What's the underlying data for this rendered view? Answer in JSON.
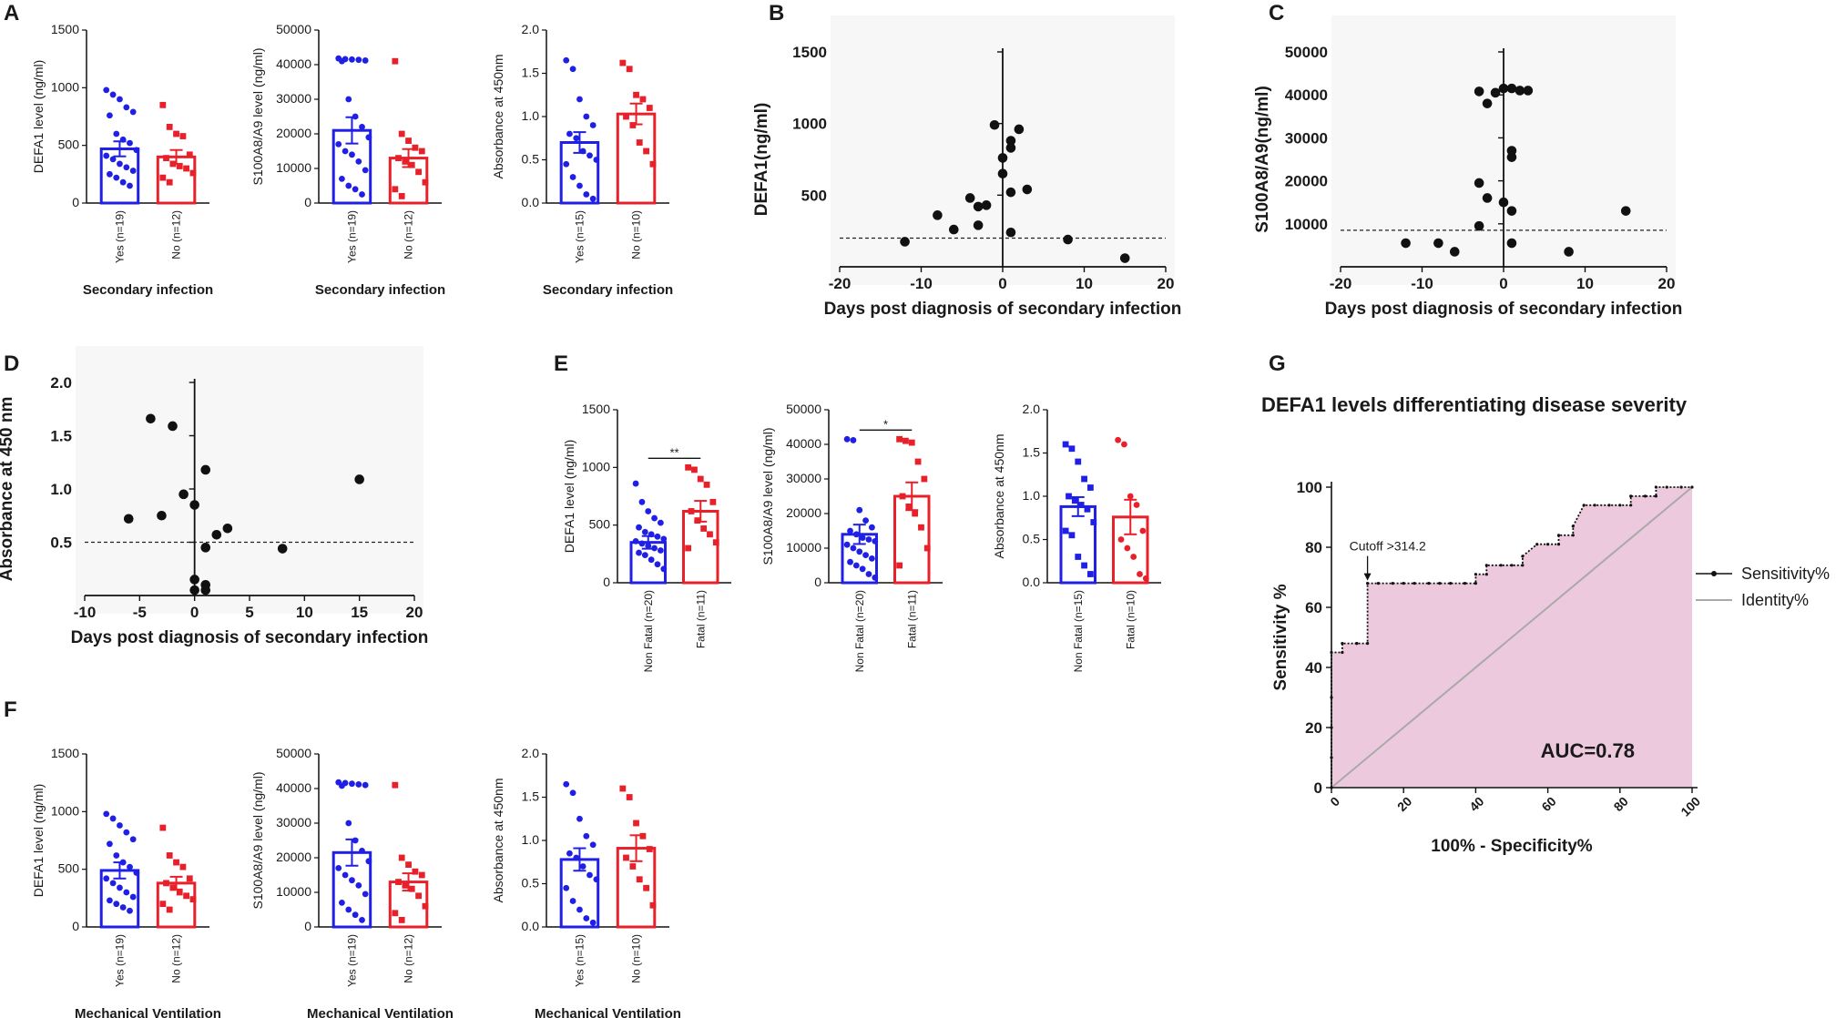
{
  "figure": {
    "panels": [
      "A",
      "B",
      "C",
      "D",
      "E",
      "F",
      "G"
    ]
  },
  "colors": {
    "blue": "#1f1fe6",
    "red": "#e8202a",
    "black": "#111111",
    "roc_fill": "#ecc9dc",
    "identity": "#a9a9a9"
  },
  "chart_data": [
    {
      "id": "A1",
      "panel": "A",
      "type": "bar",
      "ylabel": "DEFA1 level (ng/ml)",
      "xlabel": "Secondary infection",
      "ylim": [
        0,
        1500
      ],
      "yticks": [
        "0",
        "500",
        "1000",
        "1500"
      ],
      "categories": [
        "Yes (n=19)",
        "No (n=12)"
      ],
      "values": [
        470,
        400
      ],
      "errors": [
        65,
        60
      ],
      "points": [
        [
          980,
          940,
          900,
          830,
          790,
          760,
          600,
          550,
          520,
          460,
          410,
          380,
          340,
          310,
          280,
          250,
          220,
          180,
          150
        ],
        [
          850,
          660,
          600,
          580,
          420,
          390,
          340,
          320,
          300,
          260,
          220,
          180
        ]
      ],
      "colors": [
        "#1f1fe6",
        "#e8202a"
      ]
    },
    {
      "id": "A2",
      "panel": "A",
      "type": "bar",
      "ylabel": "S100A8/A9 level (ng/ml)",
      "xlabel": "Secondary infection",
      "ylim": [
        0,
        50000
      ],
      "yticks": [
        "0",
        "10000",
        "20000",
        "30000",
        "40000",
        "50000"
      ],
      "categories": [
        "Yes (n=19)",
        "No (n=12)"
      ],
      "values": [
        21000,
        13000
      ],
      "errors": [
        3800,
        2600
      ],
      "points": [
        [
          41800,
          41600,
          41500,
          41400,
          41200,
          41000,
          30000,
          25000,
          22000,
          19000,
          17000,
          15000,
          14000,
          12000,
          9500,
          7000,
          5000,
          4000,
          2500
        ],
        [
          41000,
          20000,
          18000,
          16000,
          15000,
          13000,
          12000,
          11000,
          9000,
          6000,
          4000,
          2000
        ]
      ],
      "colors": [
        "#1f1fe6",
        "#e8202a"
      ]
    },
    {
      "id": "A3",
      "panel": "A",
      "type": "bar",
      "ylabel": "Absorbance at 450nm",
      "xlabel": "Secondary infection",
      "ylim": [
        0,
        2.0
      ],
      "yticks": [
        "0.0",
        "0.5",
        "1.0",
        "1.5",
        "2.0"
      ],
      "categories": [
        "Yes (n=15)",
        "No (n=10)"
      ],
      "values": [
        0.7,
        1.03
      ],
      "errors": [
        0.12,
        0.12
      ],
      "points": [
        [
          1.65,
          1.55,
          1.2,
          1.0,
          0.9,
          0.8,
          0.75,
          0.6,
          0.55,
          0.5,
          0.45,
          0.3,
          0.2,
          0.1,
          0.05
        ],
        [
          1.62,
          1.55,
          1.25,
          1.2,
          1.1,
          1.0,
          0.9,
          0.7,
          0.6,
          0.45
        ]
      ],
      "colors": [
        "#1f1fe6",
        "#e8202a"
      ]
    },
    {
      "id": "B",
      "panel": "B",
      "type": "scatter",
      "ylabel": "DEFA1(ng/ml)",
      "xlabel": "Days post diagnosis of secondary infection",
      "xlim": [
        -20,
        20
      ],
      "ylim": [
        0,
        1500
      ],
      "xticks": [
        "-20",
        "-10",
        "0",
        "10",
        "20"
      ],
      "yticks": [
        "500",
        "1000",
        "1500"
      ],
      "cutoff": 200,
      "points": [
        [
          -12,
          175
        ],
        [
          -8,
          360
        ],
        [
          -6,
          260
        ],
        [
          -4,
          480
        ],
        [
          -3,
          420
        ],
        [
          -3,
          290
        ],
        [
          -2,
          430
        ],
        [
          -1,
          990
        ],
        [
          0,
          760
        ],
        [
          0,
          650
        ],
        [
          1,
          880
        ],
        [
          1,
          830
        ],
        [
          1,
          520
        ],
        [
          1,
          240
        ],
        [
          2,
          960
        ],
        [
          3,
          540
        ],
        [
          8,
          190
        ],
        [
          15,
          60
        ]
      ]
    },
    {
      "id": "C",
      "panel": "C",
      "type": "scatter",
      "ylabel": "S100A8/A9(ng/ml)",
      "xlabel": "Days post diagnosis of secondary infection",
      "xlim": [
        -20,
        20
      ],
      "ylim": [
        0,
        50000
      ],
      "xticks": [
        "-20",
        "-10",
        "0",
        "10",
        "20"
      ],
      "yticks": [
        "10000",
        "20000",
        "30000",
        "40000",
        "50000"
      ],
      "cutoff": 8500,
      "points": [
        [
          -12,
          5500
        ],
        [
          -8,
          5500
        ],
        [
          -6,
          3500
        ],
        [
          -3,
          19500
        ],
        [
          -3,
          9500
        ],
        [
          -2,
          16000
        ],
        [
          -2,
          38000
        ],
        [
          -1,
          40500
        ],
        [
          0,
          41500
        ],
        [
          0,
          15000
        ],
        [
          1,
          41500
        ],
        [
          1,
          27000
        ],
        [
          1,
          25500
        ],
        [
          1,
          13000
        ],
        [
          1,
          5500
        ],
        [
          2,
          41000
        ],
        [
          3,
          41000
        ],
        [
          8,
          3500
        ],
        [
          15,
          13000
        ]
      ],
      "extra_points": [
        [
          -3,
          40800
        ]
      ]
    },
    {
      "id": "D",
      "panel": "D",
      "type": "scatter",
      "ylabel": "Absorbance at 450 nm",
      "xlabel": "Days post diagnosis of secondary infection",
      "xlim": [
        -10,
        20
      ],
      "ylim": [
        0,
        2.0
      ],
      "xticks": [
        "-10",
        "-5",
        "0",
        "5",
        "10",
        "15",
        "20"
      ],
      "yticks": [
        "0.5",
        "1.0",
        "1.5",
        "2.0"
      ],
      "cutoff": 0.5,
      "points": [
        [
          -6,
          0.72
        ],
        [
          -4,
          1.66
        ],
        [
          -3,
          0.75
        ],
        [
          -2,
          1.59
        ],
        [
          -1,
          0.95
        ],
        [
          0,
          0.85
        ],
        [
          0,
          0.15
        ],
        [
          0,
          0.05
        ],
        [
          1,
          1.18
        ],
        [
          1,
          0.45
        ],
        [
          1,
          0.1
        ],
        [
          1,
          0.05
        ],
        [
          2,
          0.57
        ],
        [
          3,
          0.63
        ],
        [
          8,
          0.44
        ],
        [
          15,
          1.09
        ]
      ]
    },
    {
      "id": "E1",
      "panel": "E",
      "type": "bar",
      "ylabel": "DEFA1 level (ng/ml)",
      "xlabel": "",
      "ylim": [
        0,
        1500
      ],
      "yticks": [
        "0",
        "500",
        "1000",
        "1500"
      ],
      "categories": [
        "Non Fatal (n=20)",
        "Fatal (n=11)"
      ],
      "values": [
        350,
        620
      ],
      "errors": [
        55,
        90
      ],
      "points": [
        [
          860,
          700,
          620,
          560,
          520,
          480,
          440,
          420,
          400,
          380,
          360,
          340,
          320,
          300,
          280,
          260,
          240,
          200,
          160,
          120
        ],
        [
          1000,
          980,
          900,
          850,
          700,
          620,
          540,
          470,
          420,
          350,
          300
        ]
      ],
      "colors": [
        "#1f1fe6",
        "#e8202a"
      ],
      "significance": "**",
      "markers": [
        "circle",
        "square"
      ]
    },
    {
      "id": "E2",
      "panel": "E",
      "type": "bar",
      "ylabel": "S100A8/A9 level (ng/ml)",
      "xlabel": "",
      "ylim": [
        0,
        50000
      ],
      "yticks": [
        "0",
        "10000",
        "20000",
        "30000",
        "40000",
        "50000"
      ],
      "categories": [
        "Non Fatal (n=20)",
        "Fatal (n=11)"
      ],
      "values": [
        14000,
        25000
      ],
      "errors": [
        2800,
        4000
      ],
      "points": [
        [
          41500,
          41200,
          21000,
          18000,
          16000,
          15000,
          14000,
          13000,
          12500,
          12000,
          11000,
          10000,
          9000,
          8000,
          7000,
          6000,
          5000,
          4000,
          2500,
          1500
        ],
        [
          41500,
          41000,
          40500,
          35000,
          30000,
          25000,
          22000,
          20000,
          16000,
          10000,
          5000
        ]
      ],
      "colors": [
        "#1f1fe6",
        "#e8202a"
      ],
      "significance": "*",
      "markers": [
        "circle",
        "square"
      ]
    },
    {
      "id": "E3",
      "panel": "E",
      "type": "bar",
      "ylabel": "Absorbance at 450nm",
      "xlabel": "",
      "ylim": [
        0,
        2.0
      ],
      "yticks": [
        "0.0",
        "0.5",
        "1.0",
        "1.5",
        "2.0"
      ],
      "categories": [
        "Non Fatal (n=15)",
        "Fatal (n=10)"
      ],
      "values": [
        0.88,
        0.76
      ],
      "errors": [
        0.11,
        0.2
      ],
      "points": [
        [
          1.6,
          1.55,
          1.4,
          1.2,
          1.1,
          1.0,
          0.95,
          0.9,
          0.85,
          0.7,
          0.6,
          0.55,
          0.3,
          0.2,
          0.1
        ],
        [
          1.65,
          1.6,
          1.0,
          0.9,
          0.6,
          0.5,
          0.4,
          0.3,
          0.1,
          0.05
        ]
      ],
      "colors": [
        "#1f1fe6",
        "#e8202a"
      ],
      "markers": [
        "square",
        "circle"
      ]
    },
    {
      "id": "F1",
      "panel": "F",
      "type": "bar",
      "ylabel": "DEFA1 level (ng/ml)",
      "xlabel": "Mechanical Ventilation",
      "ylim": [
        0,
        1500
      ],
      "yticks": [
        "0",
        "500",
        "1000",
        "1500"
      ],
      "categories": [
        "Yes (n=19)",
        "No (n=12)"
      ],
      "values": [
        490,
        380
      ],
      "errors": [
        70,
        55
      ],
      "points": [
        [
          980,
          940,
          880,
          820,
          760,
          720,
          620,
          560,
          520,
          470,
          420,
          380,
          340,
          300,
          260,
          230,
          200,
          170,
          140
        ],
        [
          860,
          620,
          560,
          520,
          420,
          380,
          340,
          300,
          270,
          240,
          200,
          150
        ]
      ],
      "colors": [
        "#1f1fe6",
        "#e8202a"
      ],
      "markers": [
        "circle",
        "square"
      ]
    },
    {
      "id": "F2",
      "panel": "F",
      "type": "bar",
      "ylabel": "S100A8/A9 level (ng/ml)",
      "xlabel": "Mechanical Ventilation",
      "ylim": [
        0,
        50000
      ],
      "yticks": [
        "0",
        "10000",
        "20000",
        "30000",
        "40000",
        "50000"
      ],
      "categories": [
        "Yes (n=19)",
        "No (n=12)"
      ],
      "values": [
        21500,
        13000
      ],
      "errors": [
        3800,
        2500
      ],
      "points": [
        [
          41800,
          41600,
          41400,
          41200,
          41000,
          40800,
          30000,
          25000,
          22000,
          19000,
          17000,
          15000,
          13500,
          12000,
          9500,
          7000,
          5000,
          3500,
          2000
        ],
        [
          41000,
          20000,
          18000,
          16000,
          15000,
          13000,
          12000,
          11000,
          9000,
          6000,
          4000,
          2000
        ]
      ],
      "colors": [
        "#1f1fe6",
        "#e8202a"
      ],
      "markers": [
        "circle",
        "square"
      ]
    },
    {
      "id": "F3",
      "panel": "F",
      "type": "bar",
      "ylabel": "Absorbance at 450nm",
      "xlabel": "Mechanical Ventilation",
      "ylim": [
        0,
        2.0
      ],
      "yticks": [
        "0.0",
        "0.5",
        "1.0",
        "1.5",
        "2.0"
      ],
      "categories": [
        "Yes (n=15)",
        "No (n=10)"
      ],
      "values": [
        0.78,
        0.91
      ],
      "errors": [
        0.13,
        0.15
      ],
      "points": [
        [
          1.65,
          1.55,
          1.25,
          1.05,
          0.95,
          0.85,
          0.8,
          0.7,
          0.6,
          0.55,
          0.45,
          0.3,
          0.2,
          0.1,
          0.05
        ],
        [
          1.6,
          1.5,
          1.2,
          1.05,
          0.9,
          0.8,
          0.7,
          0.55,
          0.45,
          0.25
        ]
      ],
      "colors": [
        "#1f1fe6",
        "#e8202a"
      ],
      "markers": [
        "circle",
        "square"
      ]
    },
    {
      "id": "G",
      "panel": "G",
      "type": "line",
      "title": "DEFA1 levels differentiating disease  severity",
      "xlabel": "100% - Specificity%",
      "ylabel": "Sensitivity %",
      "xlim": [
        0,
        100
      ],
      "ylim": [
        0,
        100
      ],
      "xticks": [
        "0",
        "20",
        "40",
        "60",
        "80",
        "100"
      ],
      "yticks": [
        "0",
        "20",
        "40",
        "60",
        "80",
        "100"
      ],
      "auc_label": "AUC=0.78",
      "cutoff_label": "Cutoff >314.2",
      "cutoff_point": [
        10,
        68
      ],
      "legend": [
        "Sensitivity%",
        "Identity%"
      ],
      "series": [
        {
          "name": "Sensitivity%",
          "x": [
            0,
            0,
            0,
            0,
            0,
            3,
            3,
            7,
            7,
            10,
            10,
            13,
            17,
            20,
            23,
            27,
            30,
            33,
            37,
            40,
            40,
            43,
            43,
            47,
            50,
            53,
            53,
            57,
            60,
            63,
            63,
            67,
            67,
            70,
            73,
            77,
            80,
            83,
            83,
            87,
            90,
            90,
            93,
            97,
            100
          ],
          "y": [
            0,
            10,
            20,
            30,
            45,
            45,
            48,
            48,
            48,
            48,
            68,
            68,
            68,
            68,
            68,
            68,
            68,
            68,
            68,
            68,
            71,
            71,
            74,
            74,
            74,
            74,
            77,
            81,
            81,
            81,
            84,
            84,
            87,
            94,
            94,
            94,
            94,
            94,
            97,
            97,
            97,
            100,
            100,
            100,
            100
          ]
        },
        {
          "name": "Identity%",
          "x": [
            0,
            100
          ],
          "y": [
            0,
            100
          ]
        }
      ]
    }
  ]
}
